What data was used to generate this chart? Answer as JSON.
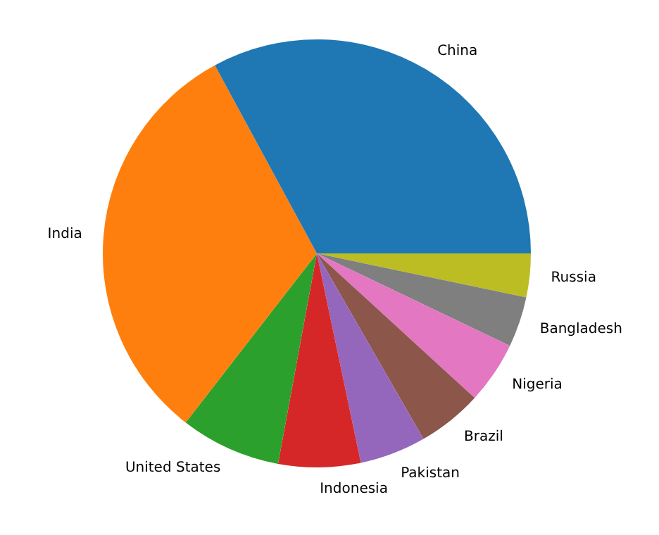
{
  "chart_data": {
    "type": "pie",
    "categories": [
      "China",
      "India",
      "United States",
      "Indonesia",
      "Pakistan",
      "Brazil",
      "Nigeria",
      "Bangladesh",
      "Russia"
    ],
    "values": [
      32.9,
      31.6,
      7.6,
      6.2,
      5.0,
      4.9,
      4.7,
      3.8,
      3.3
    ],
    "colors": [
      "#1f77b4",
      "#ff7f0e",
      "#2ca02c",
      "#d62728",
      "#9467bd",
      "#8c564b",
      "#e377c2",
      "#7f7f7f",
      "#bcbd22"
    ],
    "legend": false
  }
}
